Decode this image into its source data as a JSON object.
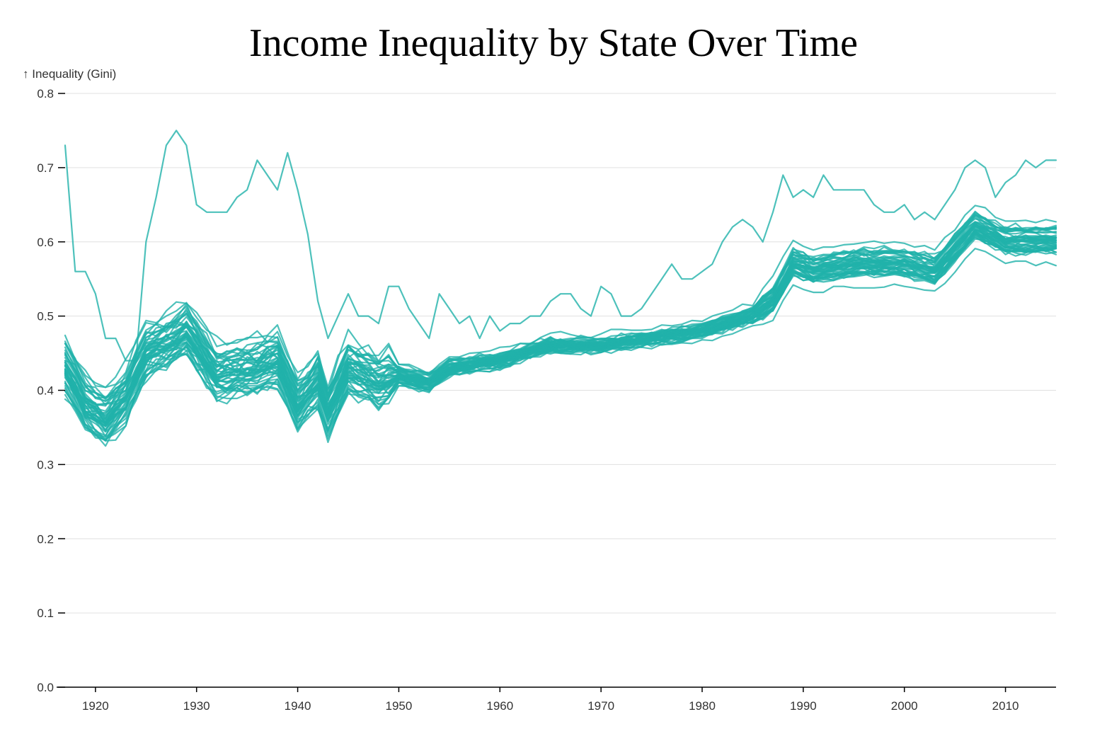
{
  "chart_data": {
    "type": "line",
    "title": "Income Inequality by State Over Time",
    "ylabel": "↑ Inequality (Gini)",
    "xlim": [
      1917,
      2015
    ],
    "ylim": [
      0,
      0.8
    ],
    "x_ticks": [
      1920,
      1930,
      1940,
      1950,
      1960,
      1970,
      1980,
      1990,
      2000,
      2010
    ],
    "y_ticks": [
      0.0,
      0.1,
      0.2,
      0.3,
      0.4,
      0.5,
      0.6,
      0.7,
      0.8
    ],
    "grid": true,
    "line_color": "#20b2aa",
    "line_opacity": 0.8,
    "series_count": 50,
    "x": [
      1917,
      1918,
      1919,
      1920,
      1921,
      1922,
      1923,
      1924,
      1925,
      1926,
      1927,
      1928,
      1929,
      1930,
      1931,
      1932,
      1933,
      1934,
      1935,
      1936,
      1937,
      1938,
      1939,
      1940,
      1941,
      1942,
      1943,
      1944,
      1945,
      1946,
      1947,
      1948,
      1949,
      1950,
      1951,
      1952,
      1953,
      1954,
      1955,
      1956,
      1957,
      1958,
      1959,
      1960,
      1961,
      1962,
      1963,
      1964,
      1965,
      1966,
      1967,
      1968,
      1969,
      1970,
      1971,
      1972,
      1973,
      1974,
      1975,
      1976,
      1977,
      1978,
      1979,
      1980,
      1981,
      1982,
      1983,
      1984,
      1985,
      1986,
      1987,
      1988,
      1989,
      1990,
      1991,
      1992,
      1993,
      1994,
      1995,
      1996,
      1997,
      1998,
      1999,
      2000,
      2001,
      2002,
      2003,
      2004,
      2005,
      2006,
      2007,
      2008,
      2009,
      2010,
      2011,
      2012,
      2013,
      2014,
      2015
    ],
    "highlighted_series": [
      {
        "values": [
          0.73,
          0.56,
          0.56,
          0.53,
          0.47,
          0.47,
          0.44,
          0.44,
          0.6,
          0.66,
          0.73,
          0.75,
          0.73,
          0.65,
          0.64,
          0.64,
          0.64,
          0.66,
          0.67,
          0.71,
          0.69,
          0.67,
          0.72,
          0.67,
          0.61,
          0.52,
          0.47,
          0.5,
          0.53,
          0.5,
          0.5,
          0.49,
          0.54,
          0.54,
          0.51,
          0.49,
          0.47,
          0.53,
          0.51,
          0.49,
          0.5,
          0.47,
          0.5,
          0.48,
          0.49,
          0.49,
          0.5,
          0.5,
          0.52,
          0.53,
          0.53,
          0.51,
          0.5,
          0.54,
          0.53,
          0.5,
          0.5,
          0.51,
          0.53,
          0.55,
          0.57,
          0.55,
          0.55,
          0.56,
          0.57,
          0.6,
          0.62,
          0.63,
          0.62,
          0.6,
          0.64,
          0.69,
          0.66,
          0.67,
          0.66,
          0.69,
          0.67,
          0.67,
          0.67,
          0.67,
          0.65,
          0.64,
          0.64,
          0.65,
          0.63,
          0.64,
          0.63,
          0.65,
          0.67,
          0.7,
          0.71,
          0.7,
          0.66,
          0.68,
          0.69,
          0.71,
          0.7,
          0.71,
          0.71
        ]
      }
    ]
  }
}
